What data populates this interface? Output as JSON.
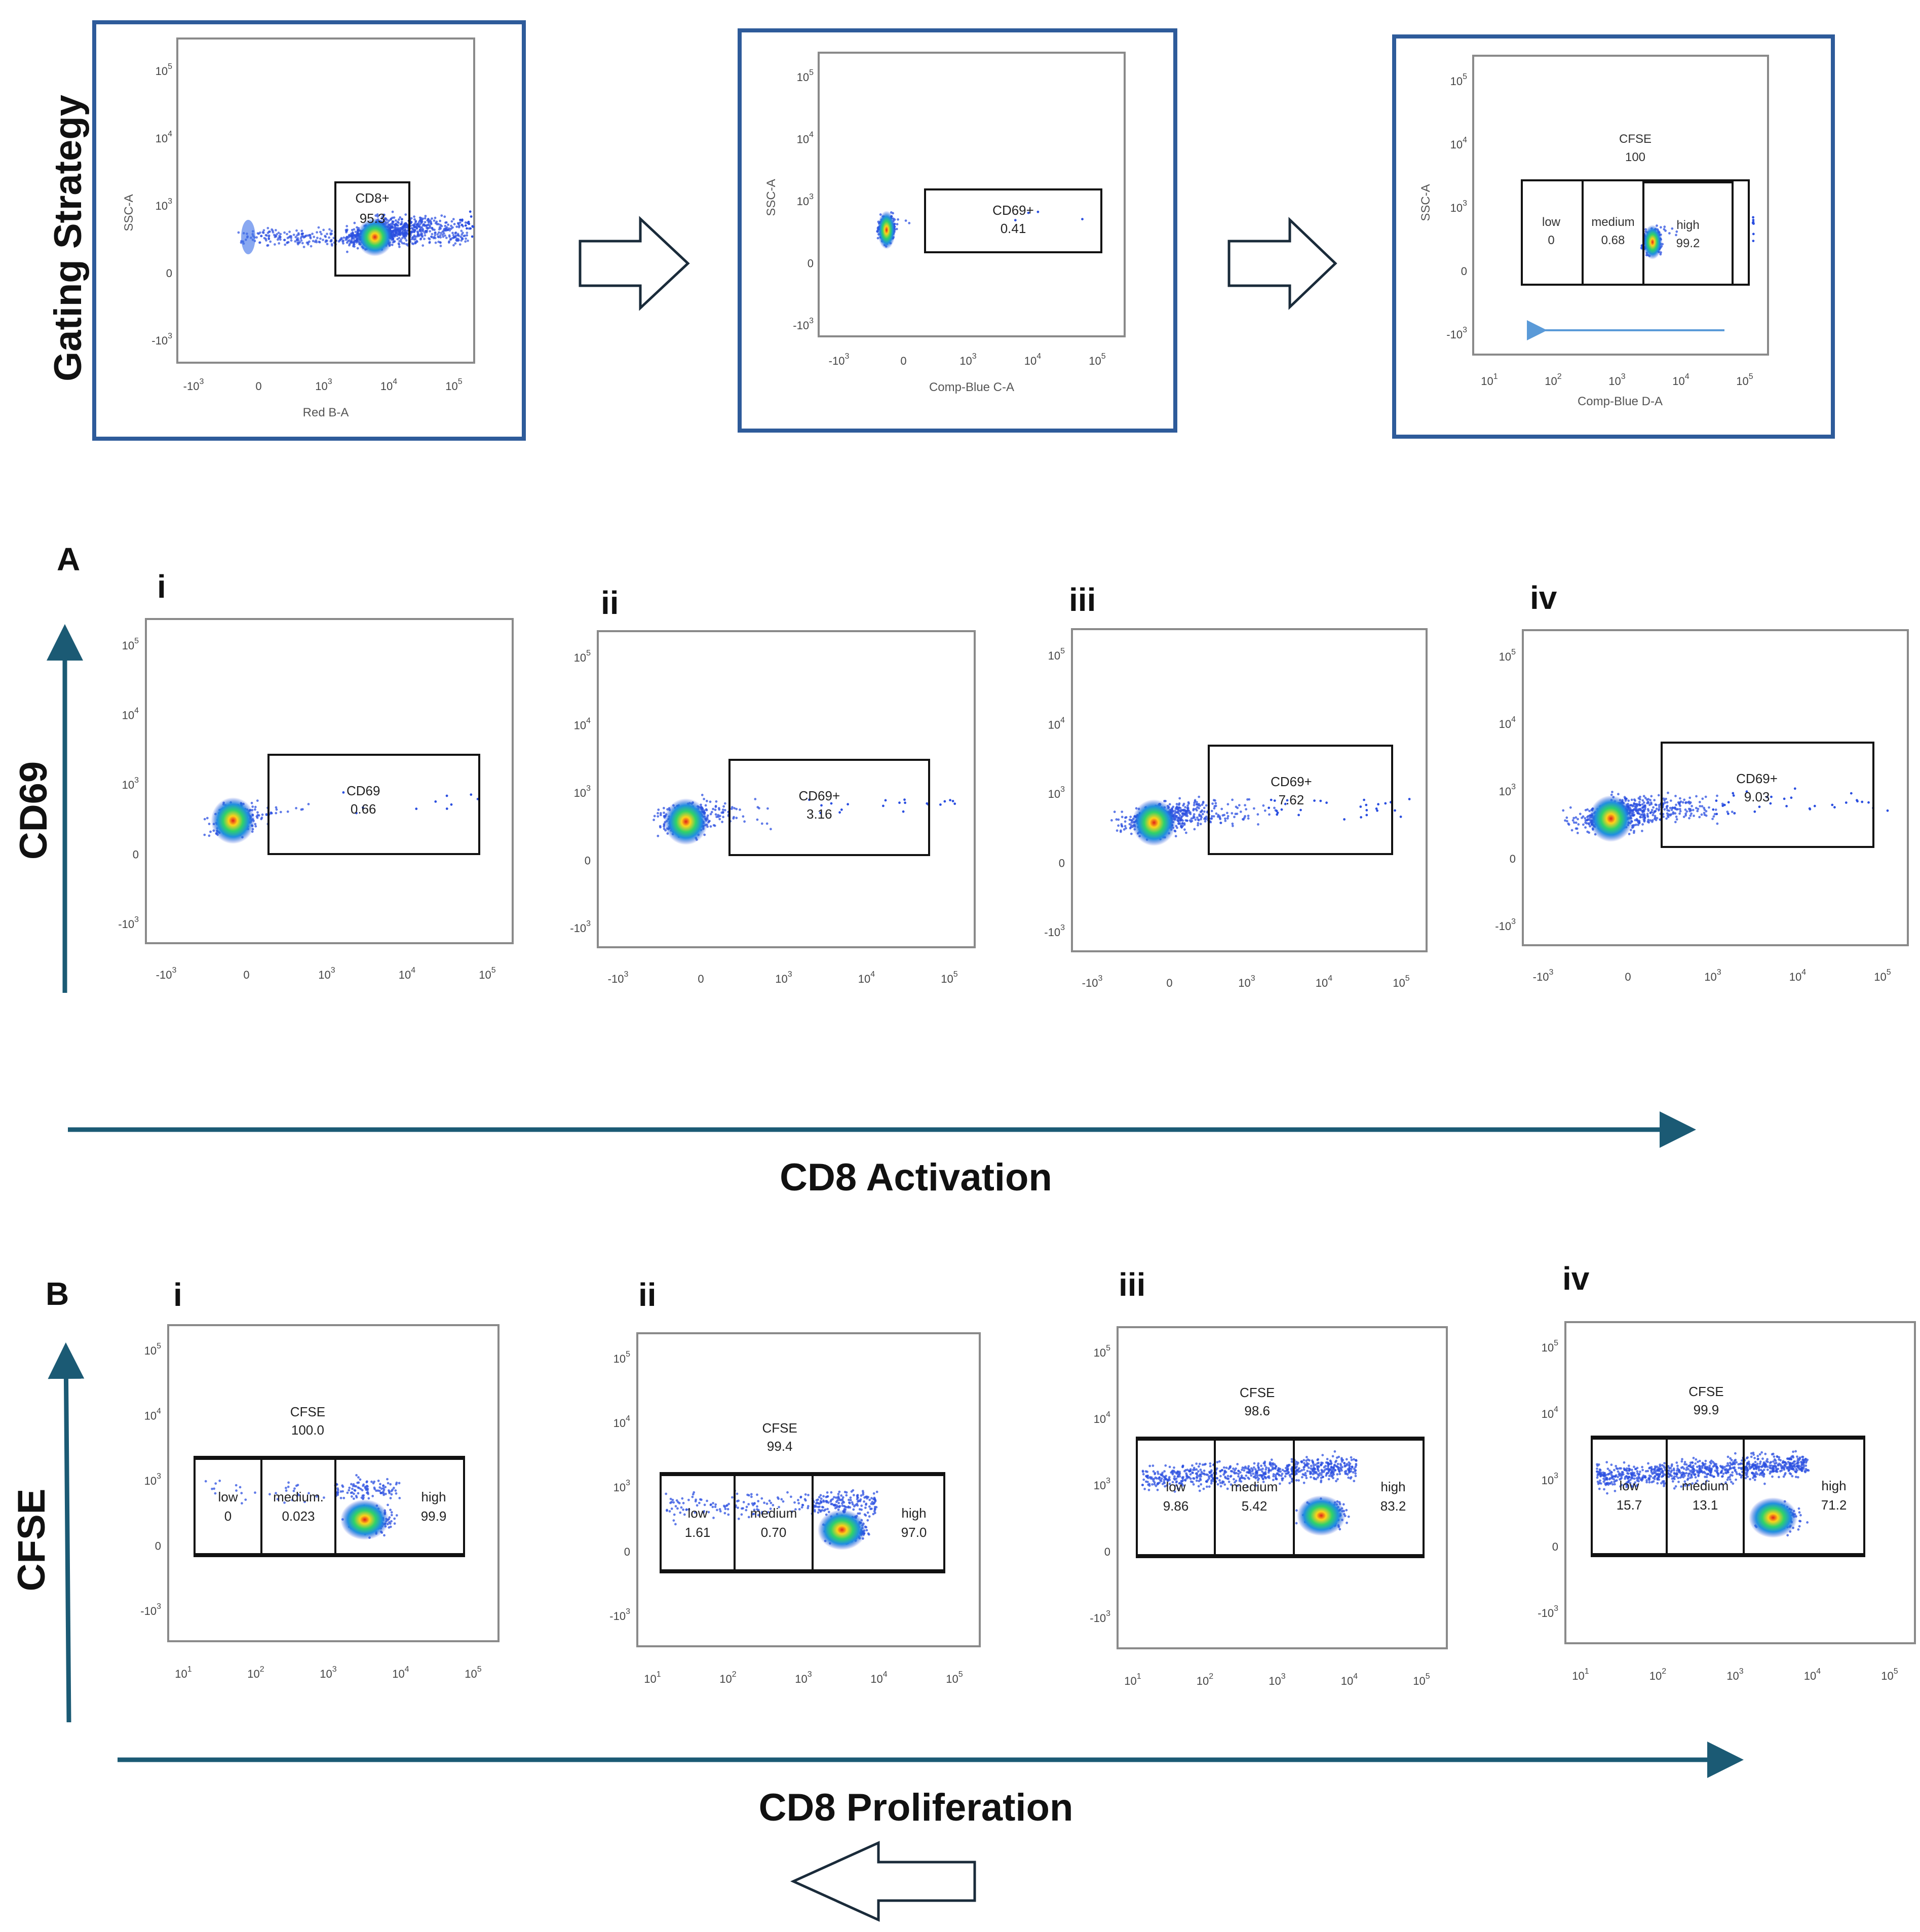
{
  "colors": {
    "axis_arrow": "#1b5a74",
    "panel_border": "#2e5b9a",
    "gate": "#111111",
    "plot_frame": "#8a8a8a"
  },
  "labels": {
    "gating_strategy": "Gating Strategy",
    "panel_a": "A",
    "panel_b": "B",
    "cd69_axis": "CD69",
    "cfse_axis": "CFSE",
    "cd8_activation": "CD8 Activation",
    "cd8_proliferation": "CD8 Proliferation"
  },
  "gating": [
    {
      "xlabel": "Red B-A",
      "ylabel": "SSC-A",
      "gates": [
        {
          "name": "CD8+",
          "value": "95.3"
        }
      ]
    },
    {
      "xlabel": "Comp-Blue C-A",
      "ylabel": "SSC-A",
      "gates": [
        {
          "name": "CD69+",
          "value": "0.41"
        }
      ]
    },
    {
      "xlabel": "Comp-Blue D-A",
      "ylabel": "SSC-A",
      "parent": {
        "name": "CFSE",
        "value": "100"
      },
      "gates": [
        {
          "name": "low",
          "value": "0"
        },
        {
          "name": "medium",
          "value": "0.68"
        },
        {
          "name": "high",
          "value": "99.2"
        }
      ]
    }
  ],
  "panel_a": [
    {
      "roman": "i",
      "gate": "CD69",
      "value": "0.66"
    },
    {
      "roman": "ii",
      "gate": "CD69+",
      "value": "3.16"
    },
    {
      "roman": "iii",
      "gate": "CD69+",
      "value": "7.62"
    },
    {
      "roman": "iv",
      "gate": "CD69+",
      "value": "9.03"
    }
  ],
  "panel_b": [
    {
      "roman": "i",
      "parent": "CFSE",
      "parent_value": "100.0",
      "gates": [
        {
          "name": "low",
          "value": "0"
        },
        {
          "name": "medium.",
          "value": "0.023"
        },
        {
          "name": "high",
          "value": "99.9"
        }
      ]
    },
    {
      "roman": "ii",
      "parent": "CFSE",
      "parent_value": "99.4",
      "gates": [
        {
          "name": "low",
          "value": "1.61"
        },
        {
          "name": "medium",
          "value": "0.70"
        },
        {
          "name": "high",
          "value": "97.0"
        }
      ]
    },
    {
      "roman": "iii",
      "parent": "CFSE",
      "parent_value": "98.6",
      "gates": [
        {
          "name": "low",
          "value": "9.86"
        },
        {
          "name": "medium",
          "value": "5.42"
        },
        {
          "name": "high",
          "value": "83.2"
        }
      ]
    },
    {
      "roman": "iv",
      "parent": "CFSE",
      "parent_value": "99.9",
      "gates": [
        {
          "name": "low",
          "value": "15.7"
        },
        {
          "name": "medium",
          "value": "13.1"
        },
        {
          "name": "high",
          "value": "71.2"
        }
      ]
    }
  ],
  "ticks": {
    "biexp_x": [
      {
        "base": "-10",
        "exp": "3"
      },
      {
        "base": "0",
        "exp": ""
      },
      {
        "base": "10",
        "exp": "3"
      },
      {
        "base": "10",
        "exp": "4"
      },
      {
        "base": "10",
        "exp": "5"
      }
    ],
    "biexp_y": [
      {
        "base": "10",
        "exp": "5"
      },
      {
        "base": "10",
        "exp": "4"
      },
      {
        "base": "10",
        "exp": "3"
      },
      {
        "base": "0",
        "exp": ""
      },
      {
        "base": "-10",
        "exp": "3"
      }
    ],
    "log_x": [
      {
        "base": "10",
        "exp": "1"
      },
      {
        "base": "10",
        "exp": "2"
      },
      {
        "base": "10",
        "exp": "3"
      },
      {
        "base": "10",
        "exp": "4"
      },
      {
        "base": "10",
        "exp": "5"
      }
    ]
  }
}
